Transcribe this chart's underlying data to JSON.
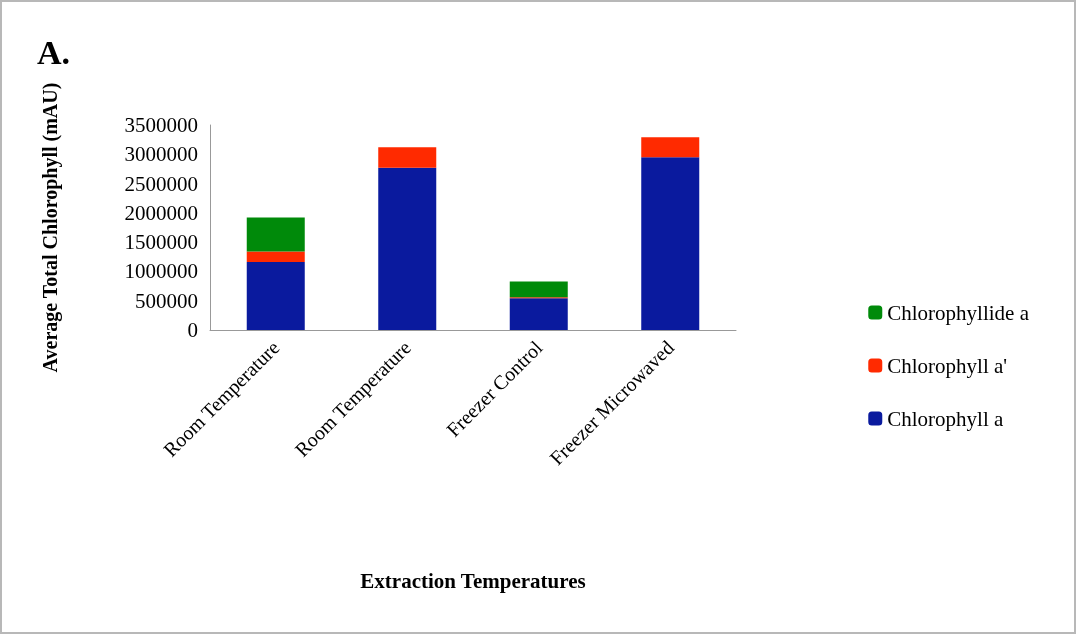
{
  "chart_data": {
    "type": "bar",
    "title": "A.",
    "xlabel": "Extraction Temperatures",
    "ylabel": "Average Total Chlorophyll (mAU)",
    "categories": [
      "Room Temperature",
      "Room Temperature",
      "Freezer Control",
      "Freezer Microwaved"
    ],
    "stacked": true,
    "series": [
      {
        "name": "Chlorophyll a",
        "color": "#0a1a9e",
        "values": [
          1160000,
          2770000,
          540000,
          2950000
        ]
      },
      {
        "name": "Chlorophyll a'",
        "color": "#ff2a00",
        "values": [
          180000,
          350000,
          20000,
          340000
        ]
      },
      {
        "name": "Chlorophyllide a",
        "color": "#008a0a",
        "values": [
          580000,
          0,
          270000,
          0
        ]
      }
    ],
    "ylim": [
      0,
      3500000
    ],
    "yticks": [
      0,
      500000,
      1000000,
      1500000,
      2000000,
      2500000,
      3000000,
      3500000
    ],
    "grid": false,
    "legend": "right"
  }
}
